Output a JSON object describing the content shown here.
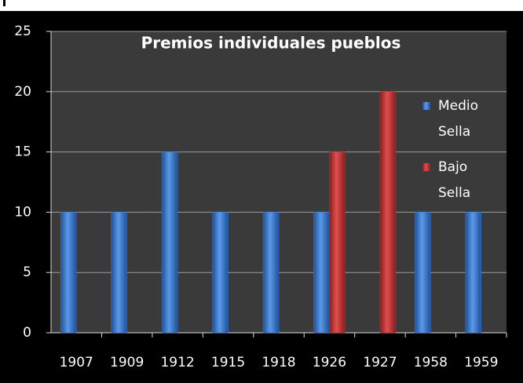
{
  "chart_data": {
    "type": "bar",
    "title": "Premios individuales pueblos",
    "categories": [
      "1907",
      "1909",
      "1912",
      "1915",
      "1918",
      "1926",
      "1927",
      "1958",
      "1959"
    ],
    "series": [
      {
        "name": "Medio Sella",
        "color": "#3f7fd4",
        "values": [
          10,
          10,
          15,
          10,
          10,
          10,
          null,
          10,
          10
        ]
      },
      {
        "name": "Bajo Sella",
        "color": "#c83232",
        "values": [
          null,
          null,
          null,
          null,
          null,
          15,
          20,
          null,
          null
        ]
      }
    ],
    "ylim": [
      0,
      25
    ],
    "yticks": [
      0,
      5,
      10,
      15,
      20,
      25
    ],
    "grid": true,
    "legend": "right"
  }
}
